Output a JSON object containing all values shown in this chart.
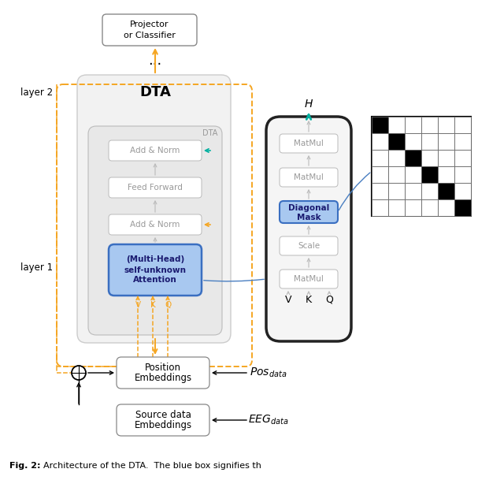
{
  "fig_width": 6.4,
  "fig_height": 6.09,
  "bg_color": "#ffffff",
  "diagonal_mask": [
    [
      1,
      0,
      0,
      0,
      0,
      0
    ],
    [
      0,
      1,
      0,
      0,
      0,
      0
    ],
    [
      0,
      0,
      1,
      0,
      0,
      0
    ],
    [
      0,
      0,
      0,
      1,
      0,
      0
    ],
    [
      0,
      0,
      0,
      0,
      1,
      0
    ],
    [
      0,
      0,
      0,
      0,
      0,
      1
    ]
  ]
}
